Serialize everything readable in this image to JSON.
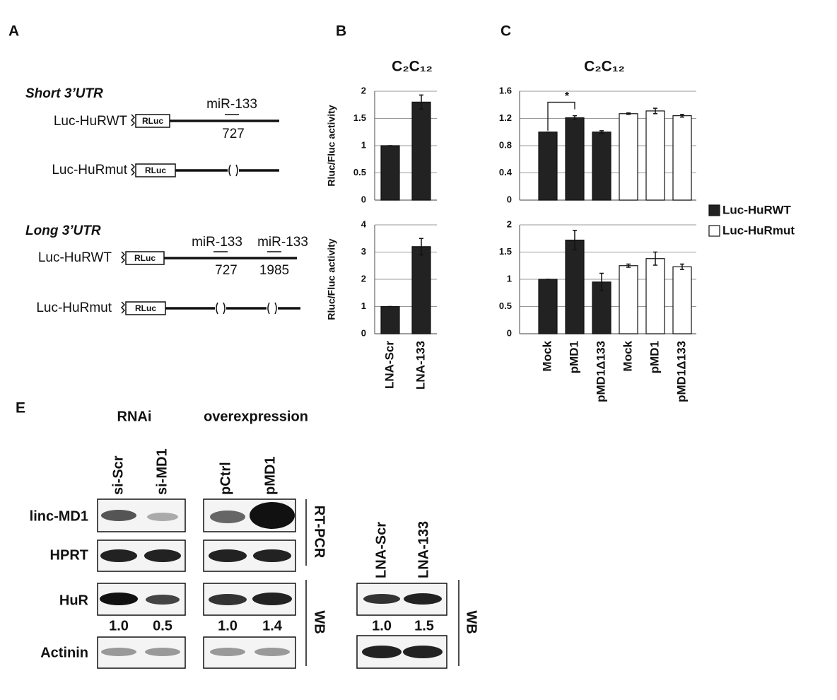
{
  "panel_labels": [
    "A",
    "B",
    "C",
    "E"
  ],
  "chart_data": [
    {
      "type": "bar",
      "title": "C₂C₁₂",
      "ylabel": "Rluc/Fluc activity",
      "categories": [
        null,
        null
      ],
      "values": [
        1,
        1.8
      ],
      "errors": [
        0,
        0.13
      ],
      "color": "#222222",
      "ylim": [
        0,
        2
      ],
      "yticks": [
        0,
        0.5,
        1,
        1.5,
        2
      ],
      "grid": true
    },
    {
      "type": "bar",
      "ylabel": "Rluc/Fluc activity",
      "categories": [
        "LNA-Scr",
        "LNA-133"
      ],
      "values": [
        1,
        3.2
      ],
      "errors": [
        0,
        0.3
      ],
      "color": "#222222",
      "ylim": [
        0,
        4
      ],
      "yticks": [
        0,
        1,
        2,
        3,
        4
      ],
      "grid": true
    },
    {
      "type": "bar",
      "title": "C₂C₁₂",
      "annotation": "*",
      "categories": [
        null,
        null,
        null,
        null,
        null,
        null
      ],
      "series": [
        {
          "name": "Luc-HuRWT",
          "color": "#222222",
          "values": [
            1,
            1.21,
            1.0,
            null,
            null,
            null
          ],
          "errors": [
            0,
            0.03,
            0.02,
            null,
            null,
            null
          ]
        },
        {
          "name": "Luc-HuRmut",
          "color": "#ffffff",
          "values": [
            null,
            null,
            null,
            1.27,
            1.31,
            1.24
          ],
          "errors": [
            null,
            null,
            null,
            0.01,
            0.04,
            0.02
          ]
        }
      ],
      "ylim": [
        0,
        1.6
      ],
      "yticks": [
        0,
        0.4,
        0.8,
        1.2,
        1.6
      ],
      "grid": true,
      "legend": "right"
    },
    {
      "type": "bar",
      "categories": [
        "Mock",
        "pMD1",
        "pMD1Δ133",
        "Mock",
        "pMD1",
        "pMD1Δ133"
      ],
      "series": [
        {
          "color": "#222222",
          "values": [
            1,
            1.72,
            0.95,
            null,
            null,
            null
          ],
          "errors": [
            0,
            0.18,
            0.16,
            null,
            null,
            null
          ]
        },
        {
          "color": "#ffffff",
          "values": [
            null,
            null,
            null,
            1.25,
            1.38,
            1.23
          ],
          "errors": [
            null,
            null,
            null,
            0.03,
            0.12,
            0.05
          ]
        }
      ],
      "ylim": [
        0,
        2
      ],
      "yticks": [
        0,
        0.5,
        1,
        1.5,
        2
      ],
      "grid": true
    }
  ],
  "panel_a": {
    "short": {
      "title": "Short 3’UTR",
      "wt": {
        "label": "Luc-HuRWT",
        "box": "RLuc",
        "site": "miR-133",
        "position": "727"
      },
      "mut": {
        "label": "Luc-HuRmut",
        "box": "RLuc"
      }
    },
    "long": {
      "title": "Long 3’UTR",
      "wt": {
        "label": "Luc-HuRWT",
        "box": "RLuc",
        "sites": [
          "miR-133",
          "miR-133"
        ],
        "positions": [
          "727",
          "1985"
        ]
      },
      "mut": {
        "label": "Luc-HuRmut",
        "box": "RLuc"
      }
    }
  },
  "panel_e": {
    "groups": [
      "RNAi",
      "overexpression"
    ],
    "lanes": [
      "si-Scr",
      "si-MD1",
      "pCtrl",
      "pMD1"
    ],
    "rows": [
      "linc-MD1",
      "HPRT",
      "HuR",
      "Actinin"
    ],
    "brackets": [
      "RT-PCR",
      "WB"
    ],
    "quant": [
      "1.0",
      "0.5",
      "1.0",
      "1.4"
    ],
    "lna": {
      "lanes": [
        "LNA-Scr",
        "LNA-133"
      ],
      "quant": [
        "1.0",
        "1.5"
      ],
      "bracket": "WB"
    }
  }
}
